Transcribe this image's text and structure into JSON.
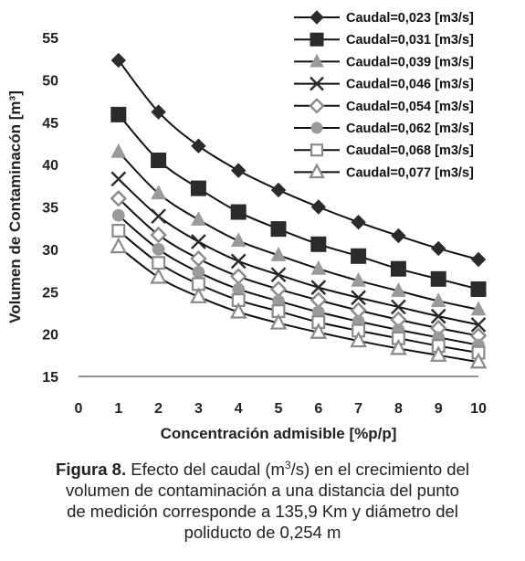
{
  "chart_data": {
    "type": "line",
    "xlabel": "Concentración admisible [%p/p]",
    "ylabel": "Volumen de Contaminacón [m³]",
    "xlim": [
      0,
      10
    ],
    "ylim": [
      15,
      55
    ],
    "x_ticks": [
      "0",
      "1",
      "2",
      "3",
      "4",
      "5",
      "6",
      "7",
      "8",
      "9",
      "10"
    ],
    "y_ticks": [
      "15",
      "20",
      "25",
      "30",
      "35",
      "40",
      "45",
      "50",
      "55"
    ],
    "grid": false,
    "legend_position": "top-right",
    "x": [
      1,
      2,
      3,
      4,
      5,
      6,
      7,
      8,
      9,
      10
    ],
    "series": [
      {
        "name": "Caudal=0,023 [m3/s]",
        "marker": "diamond-filled",
        "values": [
          52.3,
          46.2,
          42.2,
          39.3,
          37.0,
          35.0,
          33.2,
          31.6,
          30.1,
          28.8
        ]
      },
      {
        "name": "Caudal=0,031 [m3/s]",
        "marker": "square-filled",
        "values": [
          45.9,
          40.5,
          37.2,
          34.4,
          32.4,
          30.6,
          29.2,
          27.7,
          26.5,
          25.3
        ]
      },
      {
        "name": "Caudal=0,039 [m3/s]",
        "marker": "triangle-filled",
        "values": [
          41.5,
          36.6,
          33.5,
          31.0,
          29.3,
          27.7,
          26.3,
          25.1,
          23.9,
          22.9
        ]
      },
      {
        "name": "Caudal=0,046 [m3/s]",
        "marker": "x",
        "values": [
          38.3,
          33.9,
          30.9,
          28.6,
          27.0,
          25.5,
          24.3,
          23.2,
          22.1,
          21.1
        ]
      },
      {
        "name": "Caudal=0,054 [m3/s]",
        "marker": "diamond-open",
        "values": [
          36.0,
          31.7,
          28.9,
          26.8,
          25.3,
          24.0,
          22.8,
          21.7,
          20.7,
          19.8
        ]
      },
      {
        "name": "Caudal=0,062 [m3/s]",
        "marker": "circle-filled",
        "values": [
          34.0,
          30.0,
          27.3,
          25.3,
          23.9,
          22.6,
          21.5,
          20.5,
          19.6,
          18.7
        ]
      },
      {
        "name": "Caudal=0,068 [m3/s]",
        "marker": "square-open",
        "values": [
          32.2,
          28.4,
          25.9,
          24.0,
          22.7,
          21.4,
          20.4,
          19.5,
          18.6,
          17.8
        ]
      },
      {
        "name": "Caudal=0,077 [m3/s]",
        "marker": "triangle-open",
        "values": [
          30.3,
          26.7,
          24.4,
          22.6,
          21.3,
          20.2,
          19.2,
          18.3,
          17.5,
          16.7
        ]
      }
    ]
  },
  "caption": {
    "label": "Figura 8.",
    "line1": "Efecto del caudal (m",
    "line1_sup": "3",
    "line1_end": "/s) en el crecimiento del",
    "line2": "volumen de contaminación a una distancia del punto",
    "line3": "de medición corresponde a 135,9 Km y diámetro del",
    "line4": "poliducto de 0,254 m"
  },
  "colors": {
    "line": "#111111",
    "marker_gray": "#9a9a9a",
    "marker_dark": "#2b2b2b",
    "marker_light_stroke": "#8a8a8a"
  }
}
